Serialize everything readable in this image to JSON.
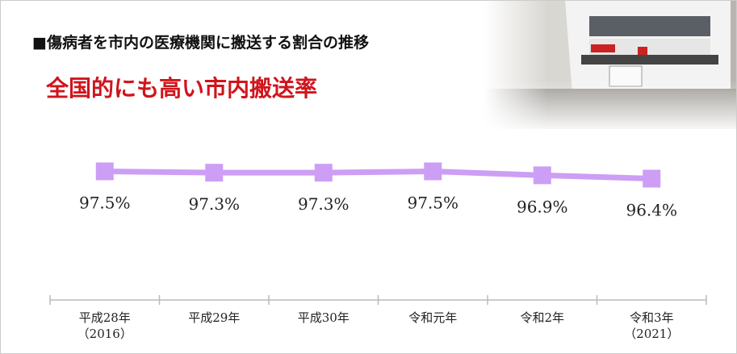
{
  "chart_data": {
    "type": "line",
    "title": "■傷病者を市内の医療機関に搬送する割合の推移",
    "subtitle": "全国的にも高い市内搬送率",
    "categories": [
      "平成28年\n（2016）",
      "平成29年",
      "平成30年",
      "令和元年",
      "令和2年",
      "令和3年\n（2021）"
    ],
    "series": [
      {
        "name": "市内搬送率",
        "color": "#cc9ef5",
        "values": [
          97.5,
          97.3,
          97.3,
          97.5,
          96.9,
          96.4
        ],
        "value_labels": [
          "97.5%",
          "97.3%",
          "97.3%",
          "97.5%",
          "96.9%",
          "96.4%"
        ]
      }
    ],
    "ylim": [
      80,
      100
    ]
  }
}
